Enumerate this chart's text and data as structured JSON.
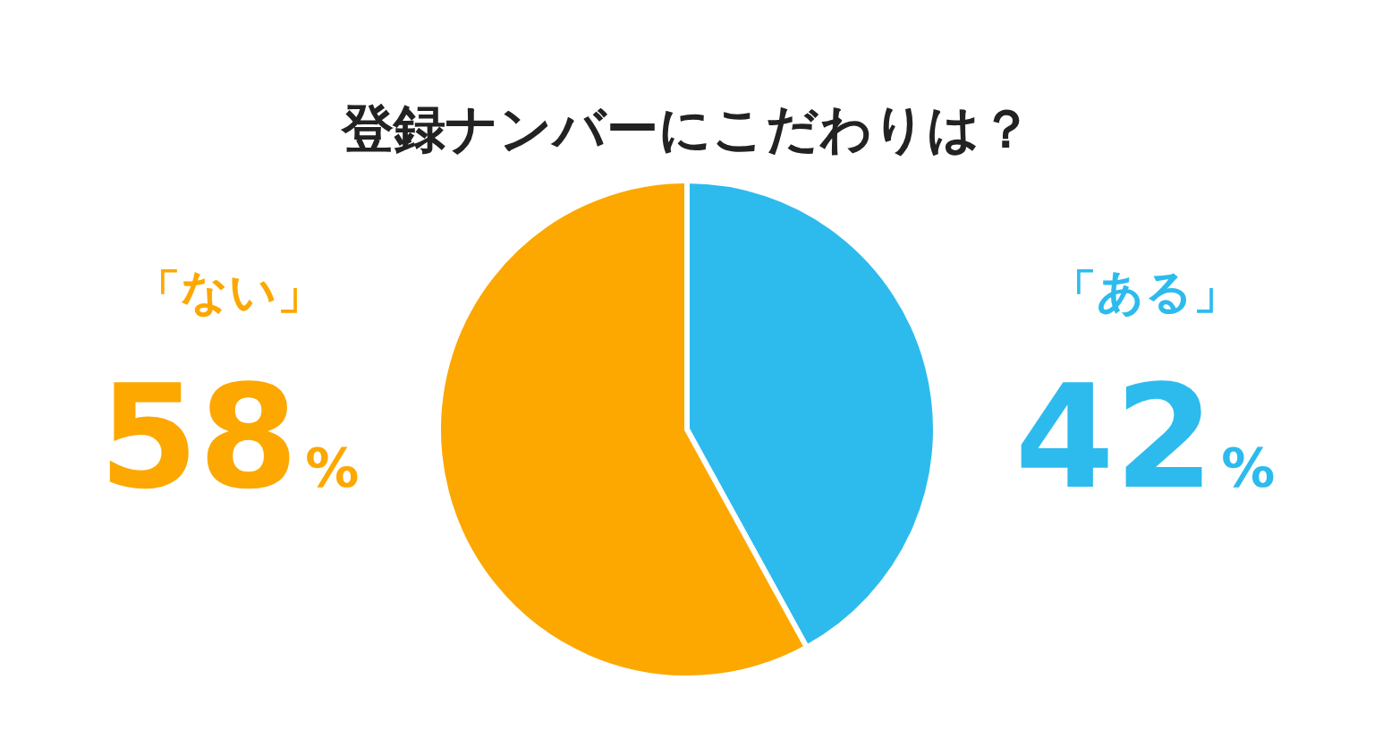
{
  "chart_data": {
    "type": "pie",
    "title": "登録ナンバーにこだわりは？",
    "categories": [
      "「ある」",
      "「ない」"
    ],
    "values": [
      42,
      58
    ],
    "colors": [
      "#2dbbee",
      "#fca800"
    ],
    "value_labels": [
      "42%",
      "58%"
    ]
  }
}
